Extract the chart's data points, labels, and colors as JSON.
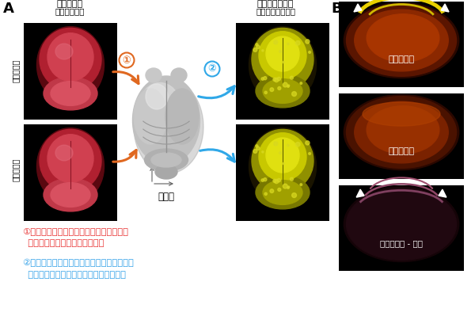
{
  "panel_A_label": "A",
  "panel_B_label": "B",
  "title_left": "全脳核染色",
  "subtitle_left": "（構造情報）",
  "title_right": "蛍光タンパク質",
  "subtitle_right": "（神経活動情報）",
  "label_std_brain": "標準脳",
  "label_with_stim_vert": "光刺激あり",
  "label_no_stim_vert": "光刺激なし",
  "label_with_stim_B": "光刺激あり",
  "label_no_stim_B": "光刺激なし",
  "label_diff_B": "光刺激あり - なし",
  "annotation1_circle": "①",
  "annotation1_text": "構造情報を脳の標準イメージに投射して\n  形や位置を合わせる（標準化）",
  "annotation2_circle": "②",
  "annotation2_text": "標準化の計算式を蛍光タンパク質の３次元\n  イメージに適応して、同じく標準化する",
  "color_ann1": "#e83030",
  "color_ann2": "#30a0e8",
  "bg_color": "#ffffff",
  "arrow_orange": "#e06820",
  "arrow_blue": "#30a8e8",
  "brain_left_bg": "#000000",
  "brain_right_bg": "#000000",
  "panel_b_bg": "#000000"
}
